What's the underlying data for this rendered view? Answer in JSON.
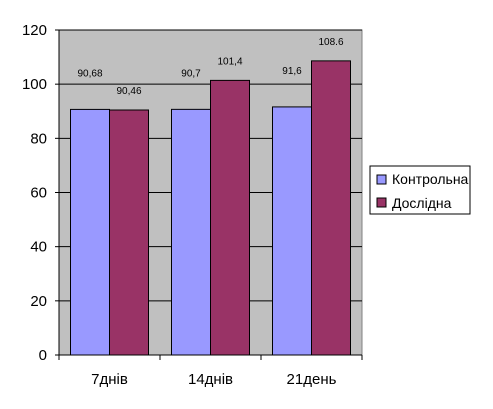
{
  "chart_data": {
    "type": "bar",
    "categories": [
      "7днів",
      "14днів",
      "21день"
    ],
    "series": [
      {
        "name": "Контрольна",
        "values": [
          90.68,
          90.7,
          91.6
        ],
        "labels": [
          "90,68",
          "90,7",
          "91,6"
        ],
        "color": "#9999ff"
      },
      {
        "name": "Дослідна",
        "values": [
          90.46,
          101.4,
          108.6
        ],
        "labels": [
          "90,46",
          "101,4",
          "108.6"
        ],
        "color": "#993366"
      }
    ],
    "ylim": [
      0,
      120
    ],
    "yticks": [
      0,
      20,
      40,
      60,
      80,
      100,
      120
    ],
    "ytick_labels": [
      "0",
      "20",
      "40",
      "60",
      "80",
      "100",
      "120"
    ],
    "grid": "horizontal",
    "legend_position": "right",
    "plot_background": "#c0c0c0"
  }
}
